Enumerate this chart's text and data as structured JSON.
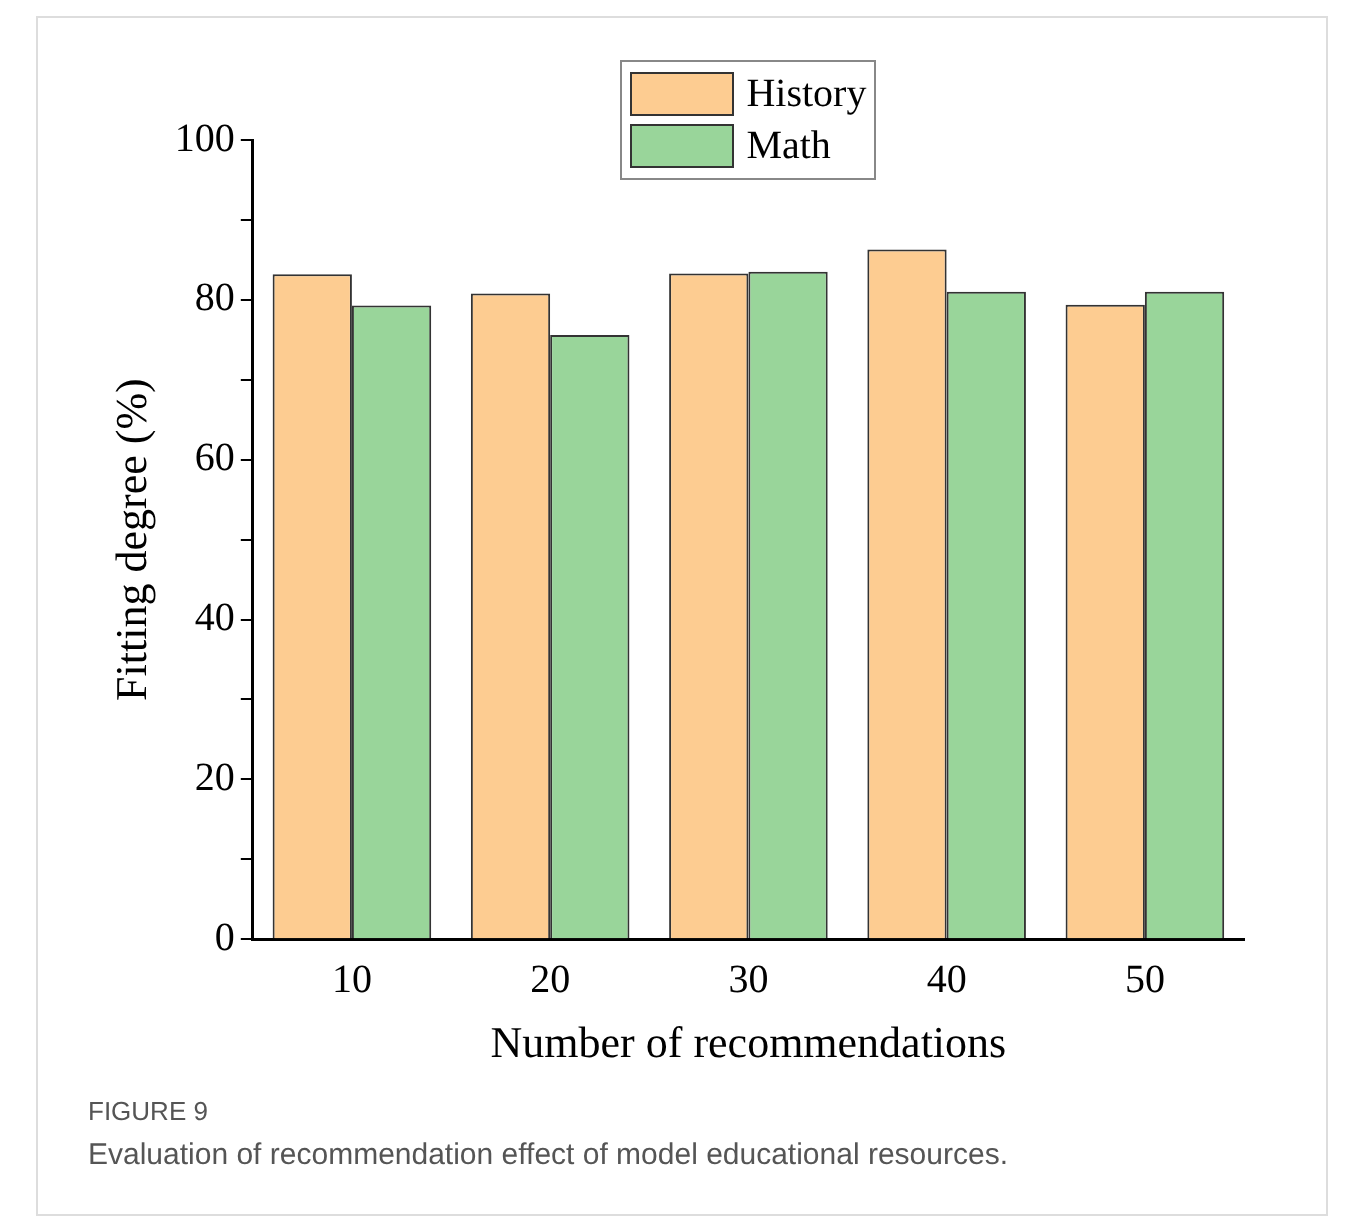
{
  "chart_data": {
    "type": "bar",
    "xlabel": "Number of recommendations",
    "ylabel": "Fitting degree (%)",
    "categories": [
      "10",
      "20",
      "30",
      "40",
      "50"
    ],
    "series": [
      {
        "name": "History",
        "color": "#fdcc91",
        "values": [
          83.2,
          80.8,
          83.3,
          86.3,
          79.4
        ]
      },
      {
        "name": "Math",
        "color": "#99d59a",
        "values": [
          79.3,
          75.6,
          83.5,
          81.0,
          81.0
        ]
      }
    ],
    "ylim": [
      0,
      100
    ],
    "yticks": [
      0,
      {
        "value": 10,
        "label": null
      },
      20,
      {
        "value": 30,
        "label": null
      },
      40,
      {
        "value": 50,
        "label": null
      },
      60,
      {
        "value": 70,
        "label": null
      },
      80,
      {
        "value": 90,
        "label": null
      },
      100
    ],
    "grid": false,
    "legend": "top",
    "annotations": [
      "FIGURE 9",
      "Evaluation of recommendation effect of model educational resources."
    ]
  }
}
